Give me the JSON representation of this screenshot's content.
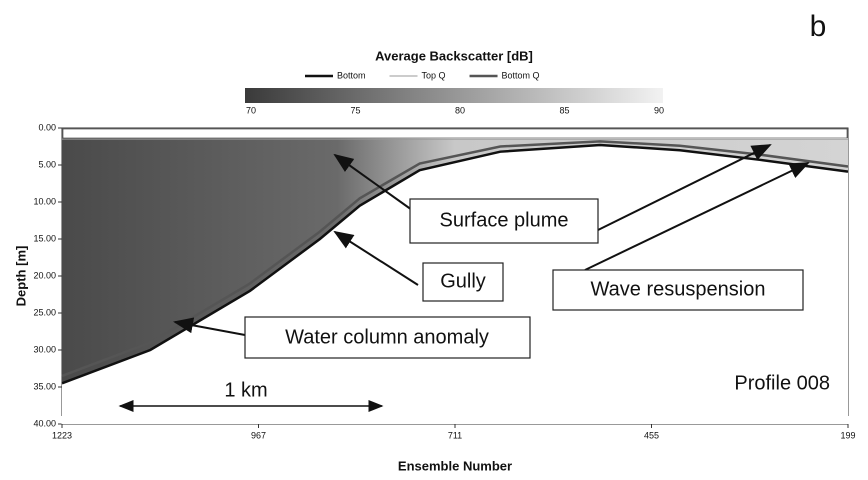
{
  "chart_data": {
    "type": "depth-profile",
    "panel_label": "b",
    "title": "Average Backscatter [dB]",
    "xlabel": "Ensemble Number",
    "ylabel": "Depth [m]",
    "xlim": [
      1223,
      199
    ],
    "xticks": [
      1223,
      967,
      711,
      455,
      199
    ],
    "ylim": [
      40,
      0
    ],
    "yticks": [
      {
        "value": 0,
        "label": "0.00"
      },
      {
        "value": 5,
        "label": "5.00"
      },
      {
        "value": 10,
        "label": "10.00"
      },
      {
        "value": 15,
        "label": "15.00"
      },
      {
        "value": 20,
        "label": "20.00"
      },
      {
        "value": 25,
        "label": "25.00"
      },
      {
        "value": 30,
        "label": "30.00"
      },
      {
        "value": 35,
        "label": "35.00"
      },
      {
        "value": 40,
        "label": "40.00"
      }
    ],
    "colorbar": {
      "range": [
        70,
        90
      ],
      "ticks": [
        70,
        75,
        80,
        85,
        90
      ],
      "colors": [
        "#3a3a3a",
        "#f2f2f2"
      ]
    },
    "x": [
      1223,
      1108,
      978,
      887,
      835,
      757,
      652,
      522,
      418,
      314,
      199
    ],
    "series": [
      {
        "name": "Bottom",
        "color": "#111111",
        "values": [
          34.5,
          30,
          22,
          15,
          10.5,
          5.7,
          3.2,
          2.3,
          3,
          4.3,
          5.9
        ]
      },
      {
        "name": "Top Q",
        "color": "#9a9a9a",
        "values": [
          1.5,
          1.5,
          1.5,
          1.5,
          1.5,
          1.5,
          1.5,
          1.5,
          1.5,
          1.5,
          1.5
        ]
      },
      {
        "name": "Bottom Q",
        "color": "#555555",
        "values": [
          33.5,
          29,
          21,
          14,
          9.5,
          4.8,
          2.5,
          1.8,
          2.4,
          3.6,
          5.2
        ]
      }
    ],
    "annotations": [
      "Surface plume",
      "Gully",
      "Water column anomaly",
      "Wave resuspension",
      "Profile 008",
      "1 km"
    ]
  }
}
